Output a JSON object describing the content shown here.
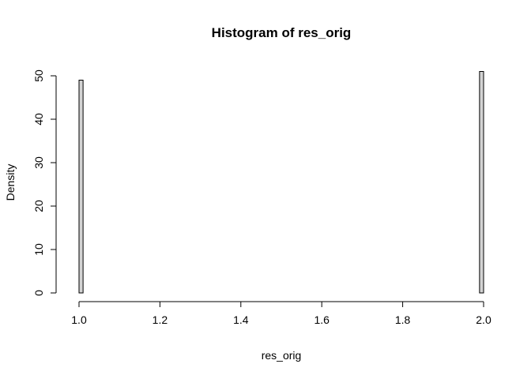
{
  "chart_data": {
    "type": "bar",
    "title": "Histogram of res_orig",
    "xlabel": "res_orig",
    "ylabel": "Density",
    "xlim": [
      1.0,
      2.0
    ],
    "ylim": [
      0,
      50
    ],
    "x_ticks": [
      "1.0",
      "1.2",
      "1.4",
      "1.6",
      "1.8",
      "2.0"
    ],
    "y_ticks": [
      "0",
      "10",
      "20",
      "30",
      "40",
      "50"
    ],
    "bin_width": 0.01,
    "bins": [
      {
        "x0": 0.99,
        "x1": 1.0,
        "density": 0
      },
      {
        "x0": 1.0,
        "x1": 1.01,
        "density": 49
      },
      {
        "x0": 1.99,
        "x1": 2.0,
        "density": 51
      }
    ],
    "bar_fill": "#d3d3d3",
    "grid": false
  }
}
